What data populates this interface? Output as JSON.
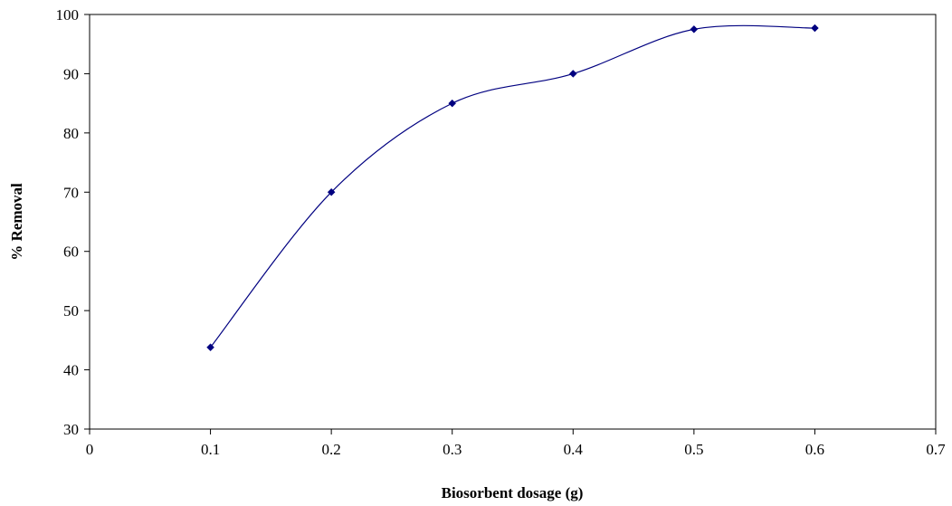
{
  "chart_data": {
    "type": "line",
    "title": "",
    "xlabel": "Biosorbent dosage (g)",
    "ylabel": "% Removal",
    "xlim": [
      0,
      0.7
    ],
    "ylim": [
      30,
      100
    ],
    "x_ticks": [
      "0",
      "0.1",
      "0.2",
      "0.3",
      "0.4",
      "0.5",
      "0.6",
      "0.7"
    ],
    "y_ticks": [
      "30",
      "40",
      "50",
      "60",
      "70",
      "80",
      "90",
      "100"
    ],
    "grid": false,
    "smooth": true,
    "series": [
      {
        "color": "#000080",
        "marker": "diamond",
        "x": [
          0.1,
          0.2,
          0.3,
          0.4,
          0.5,
          0.6
        ],
        "y": [
          43.8,
          70.0,
          85.0,
          90.0,
          97.5,
          97.7
        ]
      }
    ]
  }
}
